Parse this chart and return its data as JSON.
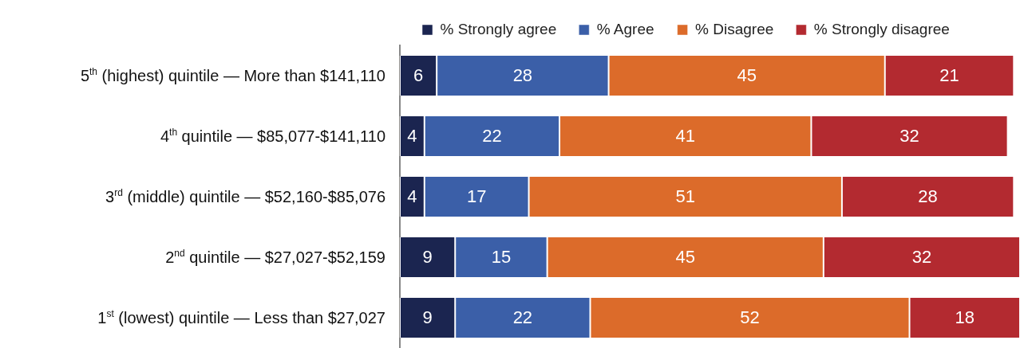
{
  "chart_data": {
    "type": "bar",
    "orientation": "horizontal",
    "stacked": true,
    "data_labels": true,
    "legend": "top left",
    "grid": false,
    "categories": [
      "5$^{th}$ (highest) quintile — More than $141,110",
      "4$^{th}$ quintile — $85,077-$141,110",
      "3$^{rd}$ (middle) quintile — $52,160-$85,076",
      "2$^{nd}$ quintile — $27,027-$52,159",
      "1$^{st}$ (lowest) quintile — Less than $27,027"
    ],
    "series": [
      {
        "name": "% Strongly agree",
        "color": "#1b2550",
        "values": [
          6,
          4,
          4,
          9,
          9
        ]
      },
      {
        "name": "% Agree",
        "color": "#3b5fa8",
        "values": [
          28,
          22,
          17,
          15,
          22
        ]
      },
      {
        "name": "% Disagree",
        "color": "#dc6b2a",
        "values": [
          45,
          41,
          51,
          45,
          52
        ]
      },
      {
        "name": "% Strongly disagree",
        "color": "#b32a30",
        "values": [
          21,
          32,
          28,
          32,
          18
        ]
      }
    ]
  }
}
